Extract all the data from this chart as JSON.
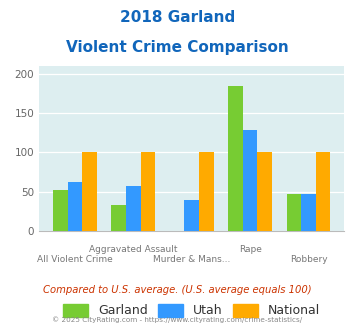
{
  "title_line1": "2018 Garland",
  "title_line2": "Violent Crime Comparison",
  "garland": [
    52,
    33,
    0,
    184,
    47
  ],
  "utah": [
    63,
    57,
    40,
    129,
    47
  ],
  "national": [
    100,
    100,
    100,
    100,
    100
  ],
  "garland_color": "#77cc33",
  "utah_color": "#3399ff",
  "national_color": "#ffaa00",
  "bg_color": "#ddeef0",
  "ylim": [
    0,
    210
  ],
  "yticks": [
    0,
    50,
    100,
    150,
    200
  ],
  "title_color": "#1166bb",
  "top_xlabels": [
    "",
    "Aggravated Assault",
    "",
    "Rape",
    ""
  ],
  "bot_xlabels": [
    "All Violent Crime",
    "",
    "Murder & Mans...",
    "",
    "Robbery"
  ],
  "legend_labels": [
    "Garland",
    "Utah",
    "National"
  ],
  "footer_text": "Compared to U.S. average. (U.S. average equals 100)",
  "footer_color": "#cc3300",
  "copyright_text": "© 2025 CityRating.com - https://www.cityrating.com/crime-statistics/",
  "copyright_color": "#888888"
}
